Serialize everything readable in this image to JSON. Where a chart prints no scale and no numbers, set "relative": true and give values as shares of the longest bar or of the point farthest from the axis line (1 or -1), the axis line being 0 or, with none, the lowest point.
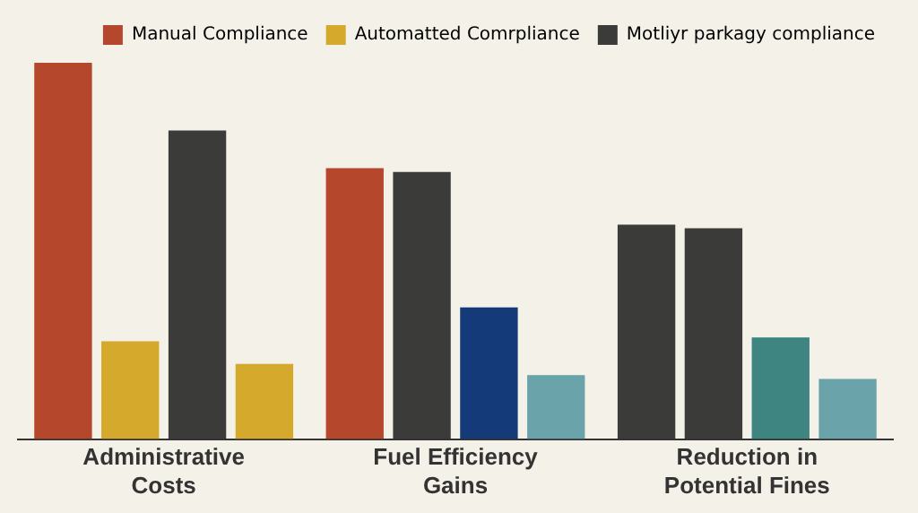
{
  "chart_data": {
    "type": "bar",
    "relative": true,
    "categories": [
      "Administrative Costs",
      "Fuel Efficiency Gains",
      "Reduction in Potential Fines"
    ],
    "series": [
      {
        "name": "Manual Compliance",
        "color": "#b5482c",
        "colors": [
          "#b5482c",
          "#b5482c",
          "#3b3b39"
        ],
        "values": [
          1,
          0.72,
          0.57
        ]
      },
      {
        "name": "Automatted Comrpliance",
        "color": "#d4a92c",
        "colors": [
          "#d4a92c",
          "#3b3b39",
          "#3b3b39"
        ],
        "values": [
          0.26,
          0.71,
          0.56
        ]
      },
      {
        "name": "Motliyr parkagy compliance",
        "color": "#3b3b39",
        "colors": [
          "#3b3b39",
          "#143a7a",
          "#3e8480"
        ],
        "values": [
          0.82,
          0.35,
          0.27
        ]
      },
      {
        "color": "#5f9ca0",
        "colors": [
          "#d4a92c",
          "#6aa3aa",
          "#6aa3aa"
        ],
        "values": [
          0.2,
          0.17,
          0.16
        ]
      }
    ],
    "legend": "top right",
    "grid": false
  }
}
